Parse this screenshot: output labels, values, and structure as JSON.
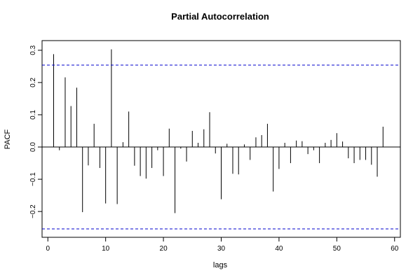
{
  "chart_data": {
    "type": "bar",
    "title": "Partial Autocorrelation",
    "xlabel": "lags",
    "ylabel": "PACF",
    "xlim": [
      -1,
      61
    ],
    "ylim": [
      -0.28,
      0.33
    ],
    "x_ticks": [
      0,
      10,
      20,
      30,
      40,
      50,
      60
    ],
    "y_ticks": [
      -0.2,
      -0.1,
      0.0,
      0.1,
      0.2,
      0.3
    ],
    "y_tick_labels": [
      "−0.2",
      "−0.1",
      "0.0",
      "0.1",
      "0.2",
      "0.3"
    ],
    "confidence_band": [
      0.254,
      -0.254
    ],
    "colors": {
      "bars": "#000000",
      "band": "#0000cc",
      "axis": "#000000"
    },
    "x": [
      1,
      2,
      3,
      4,
      5,
      6,
      7,
      8,
      9,
      10,
      11,
      12,
      13,
      14,
      15,
      16,
      17,
      18,
      19,
      20,
      21,
      22,
      23,
      24,
      25,
      26,
      27,
      28,
      29,
      30,
      31,
      32,
      33,
      34,
      35,
      36,
      37,
      38,
      39,
      40,
      41,
      42,
      43,
      44,
      45,
      46,
      47,
      48,
      49,
      50,
      51,
      52,
      53,
      54,
      55,
      56,
      57,
      58
    ],
    "values": [
      0.288,
      -0.01,
      0.216,
      0.127,
      0.184,
      -0.202,
      -0.057,
      0.072,
      -0.065,
      -0.175,
      0.303,
      -0.177,
      0.015,
      0.11,
      -0.058,
      -0.09,
      -0.098,
      -0.065,
      -0.01,
      -0.09,
      0.057,
      -0.205,
      -0.005,
      -0.045,
      0.05,
      0.013,
      0.055,
      0.108,
      -0.02,
      -0.162,
      0.01,
      -0.083,
      -0.085,
      0.008,
      -0.04,
      0.03,
      0.037,
      0.072,
      -0.138,
      -0.068,
      0.013,
      -0.05,
      0.02,
      0.018,
      -0.022,
      -0.01,
      -0.05,
      0.013,
      0.022,
      0.043,
      0.017,
      -0.035,
      -0.05,
      -0.04,
      -0.04,
      -0.055,
      -0.092,
      0.063
    ]
  }
}
